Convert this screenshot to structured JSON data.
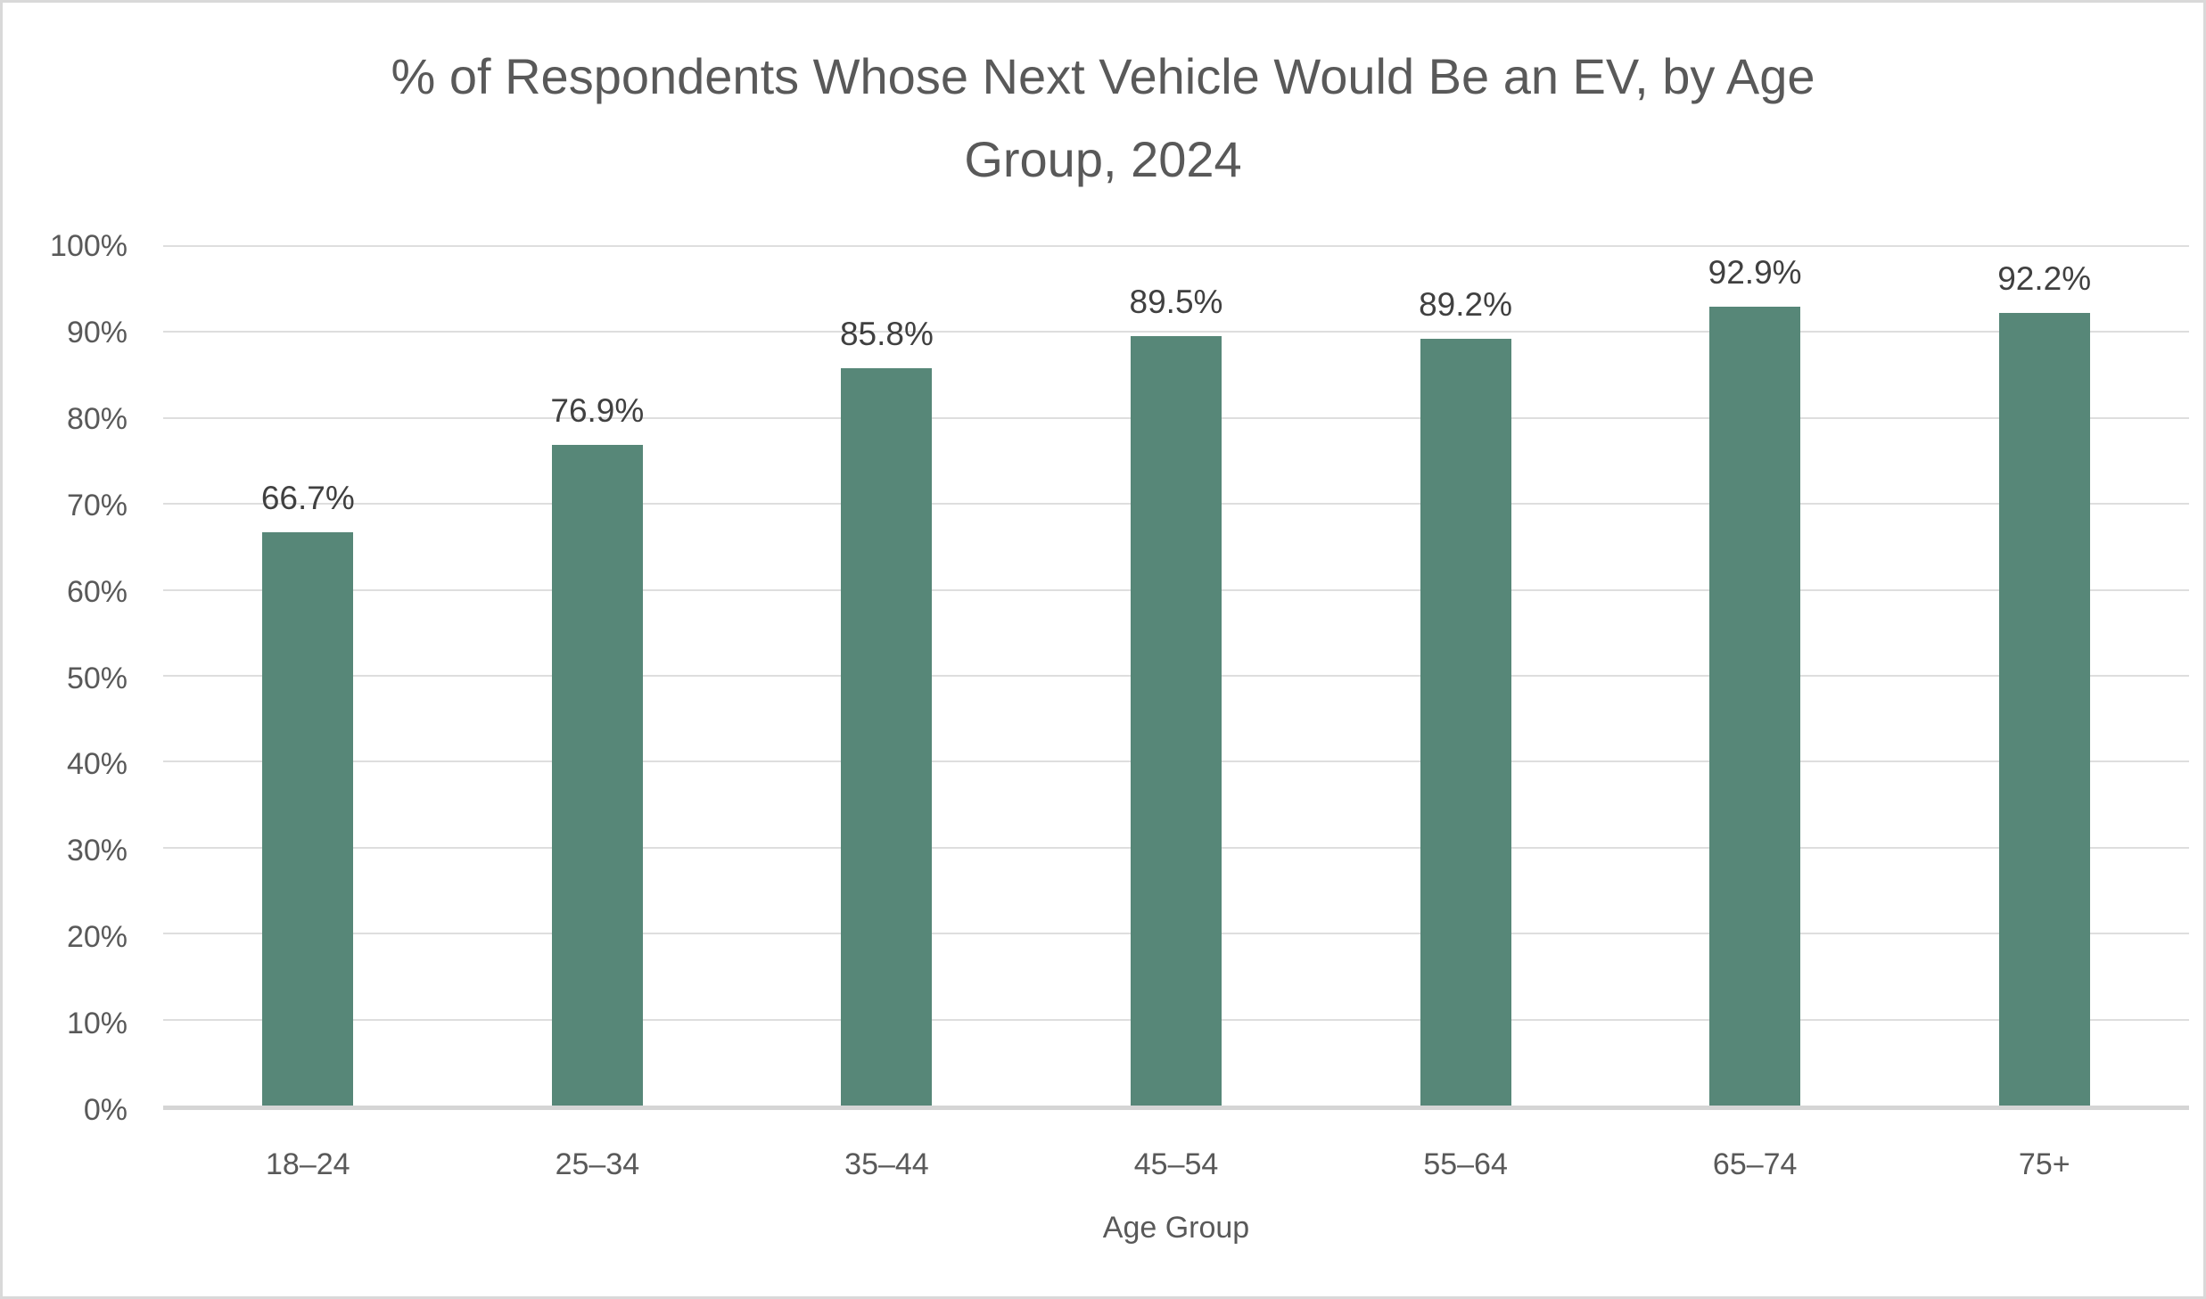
{
  "chart_data": {
    "type": "bar",
    "title": "% of Respondents Whose Next Vehicle Would Be an EV, by Age Group, 2024",
    "title_lines": [
      "% of Respondents Whose Next Vehicle Would Be an EV, by Age",
      "Group, 2024"
    ],
    "categories": [
      "18–24",
      "25–34",
      "35–44",
      "45–54",
      "55–64",
      "65–74",
      "75+"
    ],
    "values": [
      66.7,
      76.9,
      85.8,
      89.5,
      89.2,
      92.9,
      92.2
    ],
    "data_labels": [
      "66.7%",
      "76.9%",
      "85.8%",
      "89.5%",
      "89.2%",
      "92.9%",
      "92.2%"
    ],
    "xlabel": "Age Group",
    "ylabel": "",
    "ylim": [
      0,
      100
    ],
    "ytick_step": 10,
    "ytick_labels": [
      "0%",
      "10%",
      "20%",
      "30%",
      "40%",
      "50%",
      "60%",
      "70%",
      "80%",
      "90%",
      "100%"
    ],
    "grid": true,
    "legend": false,
    "colors": {
      "bar_fill": "#578778",
      "gridline": "#dedede",
      "axis_line": "#d5d5d5",
      "page_border": "#d9d9d9",
      "title_text": "#595959",
      "axis_text": "#595959",
      "data_label_text": "#404040",
      "background": "#ffffff"
    }
  }
}
